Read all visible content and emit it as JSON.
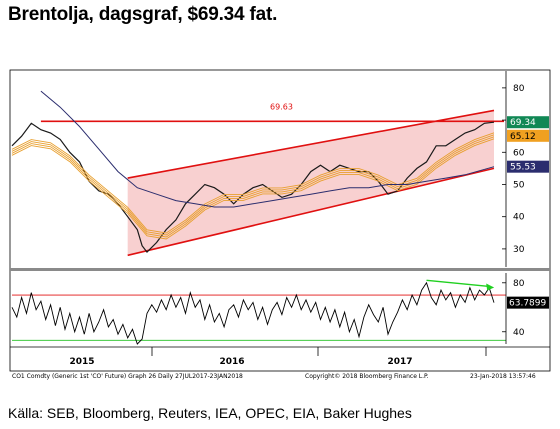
{
  "title": "Brentolja, dagsgraf, $69.34 fat.",
  "source": "Källa: SEB, Bloomberg, Reuters, IEA, OPEC, EIA, Baker Hughes",
  "footer": {
    "left": "CO1 Comdty (Generic 1st 'CO' Future) Graph 26 Daily 27JUL2017-23JAN2018",
    "center": "Copyright© 2018 Bloomberg Finance L.P.",
    "right": "23-Jan-2018 13:57:46"
  },
  "colors": {
    "price": "#1a1a1a",
    "ma_band": "#e8a030",
    "ma_long": "#2b2d6e",
    "channel": "#e01010",
    "channel_fill": "#f8d0d0",
    "rsi": "#000000",
    "rsi_top": "#e01010",
    "rsi_bottom": "#20c020",
    "divergence": "#20d020",
    "tag_price_bg": "#118855",
    "tag_ma_bg": "#f0a020",
    "tag_long_bg": "#2b2d6e"
  },
  "chart_data": [
    {
      "type": "line",
      "panel": "price",
      "x_labels": [
        "2015",
        "2016",
        "2017"
      ],
      "y_ticks": [
        30,
        40,
        50,
        60,
        70,
        80
      ],
      "ylim": [
        25,
        84
      ],
      "resistance": {
        "value": 69.63,
        "label": "69.63"
      },
      "channel": {
        "upper": [
          [
            0.24,
            52
          ],
          [
            1.0,
            73
          ]
        ],
        "lower": [
          [
            0.24,
            28
          ],
          [
            1.0,
            55
          ]
        ]
      },
      "last_values": {
        "price": "69.34",
        "ma_band": "65.12",
        "ma_long": "55.53"
      },
      "series": [
        {
          "key": "price",
          "values": [
            [
              0.0,
              62
            ],
            [
              0.02,
              65
            ],
            [
              0.04,
              69
            ],
            [
              0.06,
              67
            ],
            [
              0.08,
              66
            ],
            [
              0.1,
              64
            ],
            [
              0.12,
              60
            ],
            [
              0.14,
              57
            ],
            [
              0.16,
              51
            ],
            [
              0.18,
              48
            ],
            [
              0.2,
              47
            ],
            [
              0.22,
              44
            ],
            [
              0.24,
              40
            ],
            [
              0.26,
              36
            ],
            [
              0.27,
              31
            ],
            [
              0.28,
              29
            ],
            [
              0.3,
              32
            ],
            [
              0.32,
              36
            ],
            [
              0.34,
              39
            ],
            [
              0.36,
              44
            ],
            [
              0.38,
              47
            ],
            [
              0.4,
              50
            ],
            [
              0.42,
              49
            ],
            [
              0.44,
              47
            ],
            [
              0.46,
              44
            ],
            [
              0.48,
              47
            ],
            [
              0.5,
              49
            ],
            [
              0.52,
              50
            ],
            [
              0.54,
              48
            ],
            [
              0.56,
              46
            ],
            [
              0.58,
              47
            ],
            [
              0.6,
              50
            ],
            [
              0.62,
              54
            ],
            [
              0.64,
              56
            ],
            [
              0.66,
              54
            ],
            [
              0.68,
              56
            ],
            [
              0.7,
              55
            ],
            [
              0.72,
              54
            ],
            [
              0.74,
              54
            ],
            [
              0.76,
              51
            ],
            [
              0.78,
              47
            ],
            [
              0.8,
              48
            ],
            [
              0.82,
              52
            ],
            [
              0.84,
              55
            ],
            [
              0.86,
              57
            ],
            [
              0.88,
              62
            ],
            [
              0.9,
              62
            ],
            [
              0.92,
              64
            ],
            [
              0.94,
              66
            ],
            [
              0.96,
              67
            ],
            [
              0.98,
              69
            ],
            [
              1.0,
              69.34
            ]
          ]
        },
        {
          "key": "ma_band",
          "values": [
            [
              0.0,
              60
            ],
            [
              0.04,
              63
            ],
            [
              0.08,
              62
            ],
            [
              0.12,
              58
            ],
            [
              0.16,
              52
            ],
            [
              0.2,
              47
            ],
            [
              0.24,
              42
            ],
            [
              0.28,
              35
            ],
            [
              0.32,
              34
            ],
            [
              0.36,
              38
            ],
            [
              0.4,
              43
            ],
            [
              0.44,
              46
            ],
            [
              0.48,
              46
            ],
            [
              0.52,
              48
            ],
            [
              0.56,
              48
            ],
            [
              0.6,
              49
            ],
            [
              0.64,
              52
            ],
            [
              0.68,
              54
            ],
            [
              0.72,
              54
            ],
            [
              0.76,
              52
            ],
            [
              0.8,
              49
            ],
            [
              0.84,
              51
            ],
            [
              0.88,
              56
            ],
            [
              0.92,
              60
            ],
            [
              0.96,
              63
            ],
            [
              1.0,
              65.12
            ]
          ]
        },
        {
          "key": "ma_long",
          "values": [
            [
              0.06,
              79
            ],
            [
              0.1,
              74
            ],
            [
              0.14,
              68
            ],
            [
              0.18,
              61
            ],
            [
              0.22,
              54
            ],
            [
              0.26,
              49
            ],
            [
              0.3,
              47
            ],
            [
              0.34,
              45
            ],
            [
              0.38,
              44
            ],
            [
              0.42,
              43
            ],
            [
              0.46,
              43
            ],
            [
              0.5,
              44
            ],
            [
              0.54,
              45
            ],
            [
              0.58,
              46
            ],
            [
              0.62,
              47
            ],
            [
              0.66,
              48
            ],
            [
              0.7,
              49
            ],
            [
              0.74,
              49
            ],
            [
              0.78,
              50
            ],
            [
              0.82,
              50
            ],
            [
              0.86,
              51
            ],
            [
              0.9,
              52
            ],
            [
              0.94,
              53
            ],
            [
              1.0,
              55.53
            ]
          ]
        }
      ]
    },
    {
      "type": "line",
      "panel": "rsi",
      "y_ticks": [
        40,
        80
      ],
      "ylim": [
        30,
        88
      ],
      "last_value": "63.7899",
      "reference_lines": {
        "upper": 70,
        "lower": 33
      },
      "divergence": [
        [
          0.86,
          82
        ],
        [
          0.99,
          77
        ]
      ],
      "series": [
        {
          "key": "rsi",
          "values": [
            [
              0.0,
              60
            ],
            [
              0.01,
              52
            ],
            [
              0.02,
              68
            ],
            [
              0.03,
              55
            ],
            [
              0.04,
              72
            ],
            [
              0.05,
              58
            ],
            [
              0.06,
              65
            ],
            [
              0.07,
              50
            ],
            [
              0.08,
              62
            ],
            [
              0.09,
              45
            ],
            [
              0.1,
              60
            ],
            [
              0.11,
              42
            ],
            [
              0.12,
              55
            ],
            [
              0.13,
              40
            ],
            [
              0.14,
              52
            ],
            [
              0.15,
              38
            ],
            [
              0.16,
              55
            ],
            [
              0.17,
              40
            ],
            [
              0.18,
              48
            ],
            [
              0.19,
              58
            ],
            [
              0.2,
              44
            ],
            [
              0.21,
              50
            ],
            [
              0.22,
              38
            ],
            [
              0.23,
              46
            ],
            [
              0.24,
              35
            ],
            [
              0.25,
              42
            ],
            [
              0.26,
              30
            ],
            [
              0.27,
              34
            ],
            [
              0.28,
              55
            ],
            [
              0.29,
              62
            ],
            [
              0.3,
              56
            ],
            [
              0.31,
              66
            ],
            [
              0.32,
              58
            ],
            [
              0.33,
              70
            ],
            [
              0.34,
              60
            ],
            [
              0.35,
              68
            ],
            [
              0.36,
              55
            ],
            [
              0.37,
              72
            ],
            [
              0.38,
              60
            ],
            [
              0.39,
              66
            ],
            [
              0.4,
              50
            ],
            [
              0.41,
              62
            ],
            [
              0.42,
              48
            ],
            [
              0.43,
              55
            ],
            [
              0.44,
              44
            ],
            [
              0.45,
              58
            ],
            [
              0.46,
              62
            ],
            [
              0.47,
              52
            ],
            [
              0.48,
              66
            ],
            [
              0.49,
              58
            ],
            [
              0.5,
              64
            ],
            [
              0.51,
              50
            ],
            [
              0.52,
              60
            ],
            [
              0.53,
              46
            ],
            [
              0.54,
              58
            ],
            [
              0.55,
              64
            ],
            [
              0.56,
              54
            ],
            [
              0.57,
              68
            ],
            [
              0.58,
              60
            ],
            [
              0.59,
              70
            ],
            [
              0.6,
              58
            ],
            [
              0.61,
              66
            ],
            [
              0.62,
              56
            ],
            [
              0.63,
              64
            ],
            [
              0.64,
              50
            ],
            [
              0.65,
              60
            ],
            [
              0.66,
              48
            ],
            [
              0.67,
              58
            ],
            [
              0.68,
              44
            ],
            [
              0.69,
              56
            ],
            [
              0.7,
              40
            ],
            [
              0.71,
              50
            ],
            [
              0.72,
              36
            ],
            [
              0.73,
              52
            ],
            [
              0.74,
              62
            ],
            [
              0.75,
              54
            ],
            [
              0.76,
              48
            ],
            [
              0.77,
              60
            ],
            [
              0.78,
              38
            ],
            [
              0.79,
              48
            ],
            [
              0.8,
              56
            ],
            [
              0.81,
              66
            ],
            [
              0.82,
              58
            ],
            [
              0.83,
              70
            ],
            [
              0.84,
              62
            ],
            [
              0.85,
              74
            ],
            [
              0.86,
              80
            ],
            [
              0.87,
              68
            ],
            [
              0.88,
              62
            ],
            [
              0.89,
              74
            ],
            [
              0.9,
              66
            ],
            [
              0.91,
              72
            ],
            [
              0.92,
              60
            ],
            [
              0.93,
              70
            ],
            [
              0.94,
              64
            ],
            [
              0.95,
              76
            ],
            [
              0.96,
              66
            ],
            [
              0.97,
              74
            ],
            [
              0.98,
              70
            ],
            [
              0.99,
              76
            ],
            [
              1.0,
              63.79
            ]
          ]
        }
      ]
    }
  ]
}
